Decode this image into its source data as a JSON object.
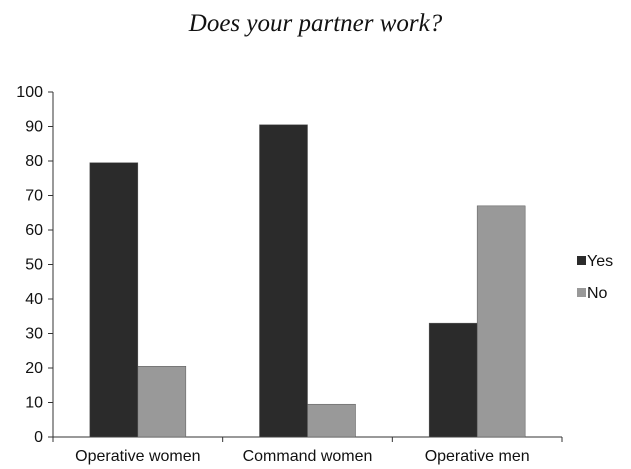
{
  "chart_data": {
    "type": "bar",
    "title": "Does your partner work?",
    "categories": [
      "Operative women",
      "Command women",
      "Operative men"
    ],
    "series": [
      {
        "name": "Yes",
        "color": "#2b2b2b",
        "values": [
          79.5,
          90.5,
          33
        ]
      },
      {
        "name": "No",
        "color": "#999999",
        "values": [
          20.5,
          9.5,
          67
        ]
      }
    ],
    "ylim": [
      0,
      100
    ],
    "yticks": [
      "0",
      "10",
      "20",
      "30",
      "40",
      "50",
      "60",
      "70",
      "80",
      "90",
      "100"
    ],
    "xlabel": "",
    "ylabel": "",
    "grid": false,
    "legend_position": "right"
  }
}
